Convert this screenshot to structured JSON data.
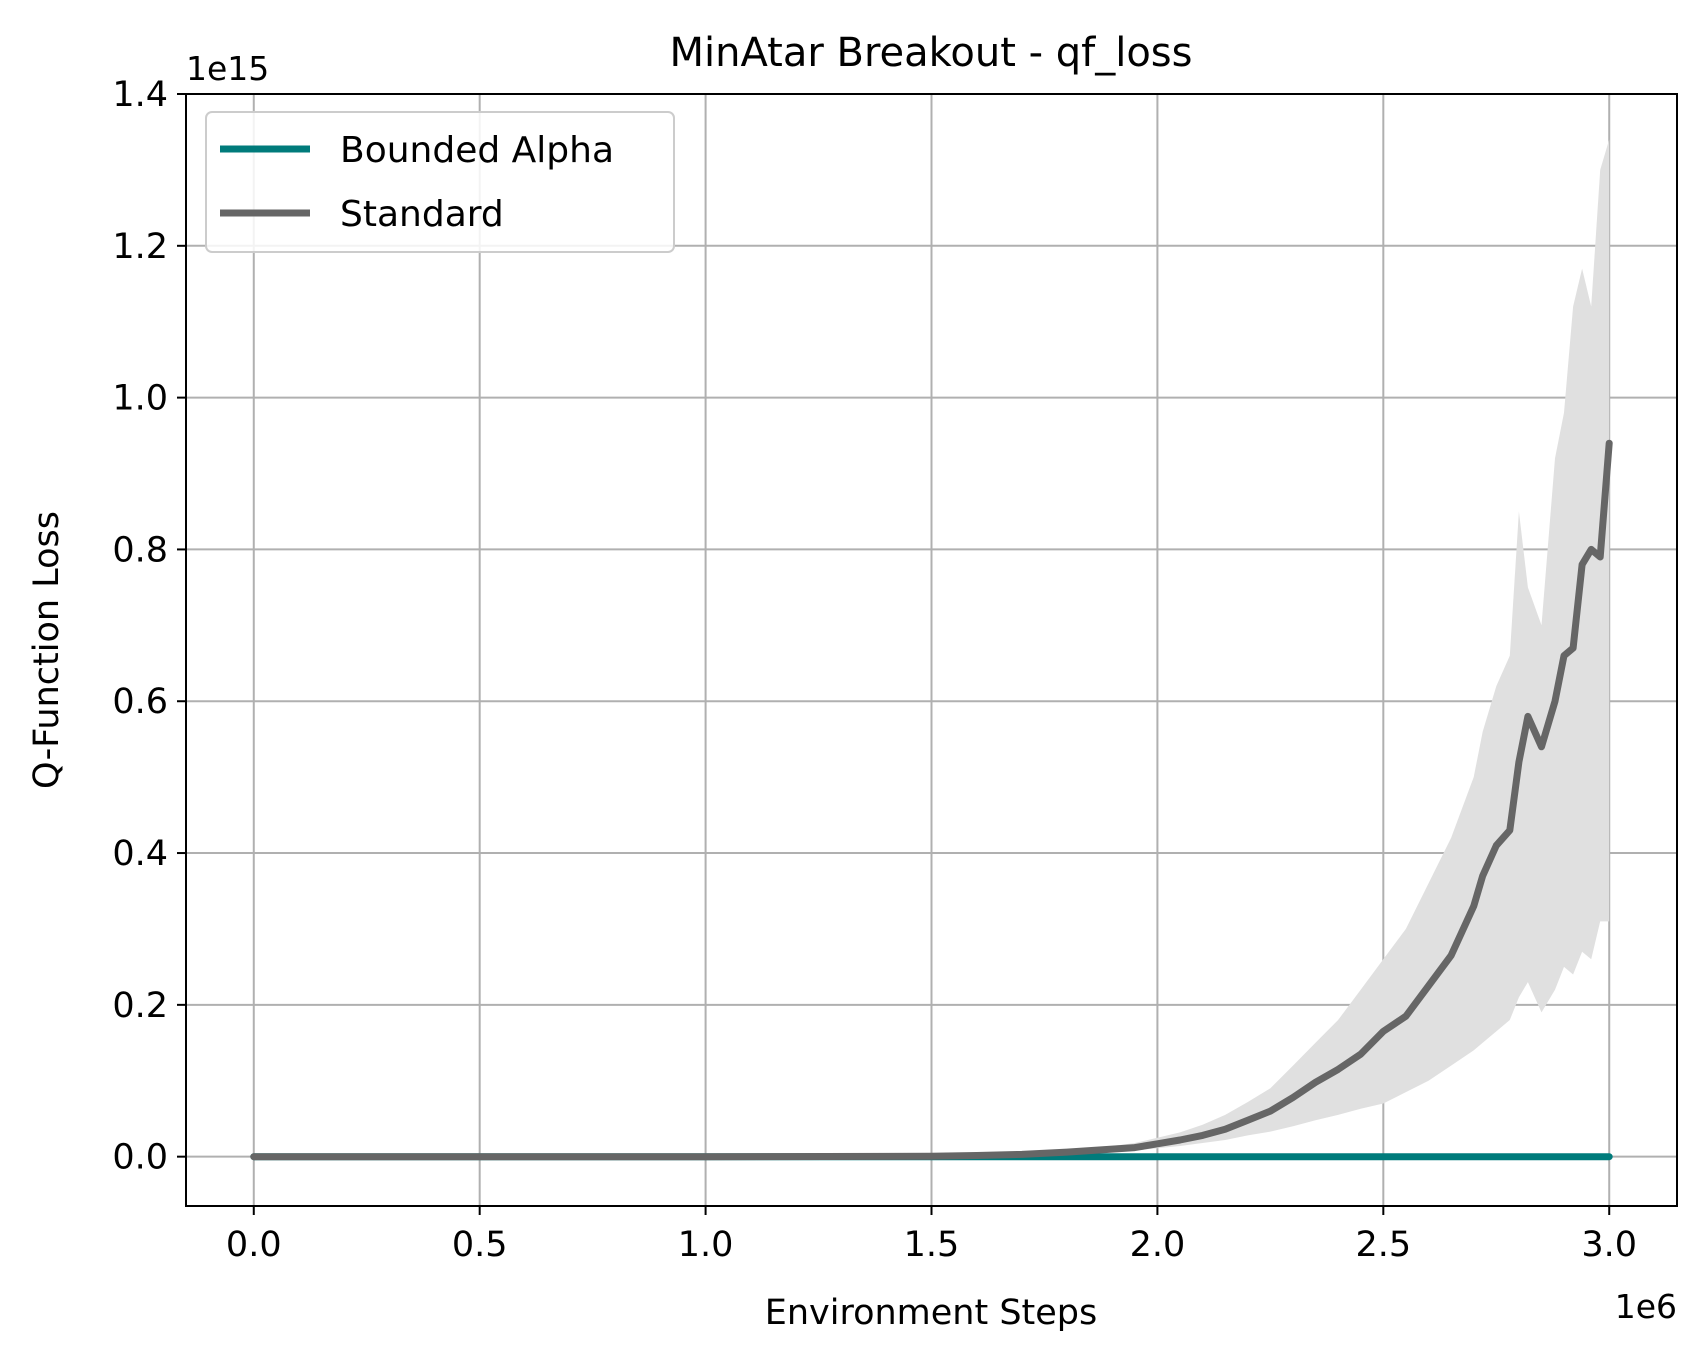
{
  "chart_data": {
    "type": "line",
    "title": "MinAtar Breakout - qf_loss",
    "xlabel": "Environment Steps",
    "ylabel": "Q-Function Loss",
    "x_scale_label": "1e6",
    "y_scale_label": "1e15",
    "xlim": [
      -0.15,
      3.15
    ],
    "ylim": [
      -0.065,
      1.4
    ],
    "x_ticks": [
      0.0,
      0.5,
      1.0,
      1.5,
      2.0,
      2.5,
      3.0
    ],
    "x_tick_labels": [
      "0.0",
      "0.5",
      "1.0",
      "1.5",
      "2.0",
      "2.5",
      "3.0"
    ],
    "y_ticks": [
      0.0,
      0.2,
      0.4,
      0.6,
      0.8,
      1.0,
      1.2,
      1.4
    ],
    "y_tick_labels": [
      "0.0",
      "0.2",
      "0.4",
      "0.6",
      "0.8",
      "1.0",
      "1.2",
      "1.4"
    ],
    "grid": true,
    "legend_position": "top-left",
    "series": [
      {
        "name": "Bounded Alpha",
        "color": "#007b7b",
        "x": [
          0.0,
          0.5,
          1.0,
          1.5,
          2.0,
          2.5,
          3.0
        ],
        "values": [
          0.0,
          0.0,
          0.0,
          0.0,
          0.0,
          0.0,
          0.0
        ]
      },
      {
        "name": "Standard",
        "color": "#666666",
        "band_color": "#e0e0e0",
        "x": [
          0.0,
          0.5,
          1.0,
          1.5,
          1.6,
          1.7,
          1.8,
          1.9,
          1.95,
          2.0,
          2.05,
          2.1,
          2.15,
          2.2,
          2.25,
          2.3,
          2.35,
          2.4,
          2.45,
          2.5,
          2.55,
          2.6,
          2.65,
          2.7,
          2.72,
          2.75,
          2.78,
          2.8,
          2.82,
          2.85,
          2.88,
          2.9,
          2.92,
          2.94,
          2.96,
          2.98,
          3.0
        ],
        "values": [
          0.0,
          0.0,
          0.0,
          0.0005,
          0.0015,
          0.003,
          0.006,
          0.01,
          0.012,
          0.017,
          0.022,
          0.028,
          0.036,
          0.048,
          0.06,
          0.078,
          0.098,
          0.115,
          0.135,
          0.165,
          0.185,
          0.225,
          0.265,
          0.33,
          0.37,
          0.41,
          0.43,
          0.52,
          0.58,
          0.54,
          0.6,
          0.66,
          0.67,
          0.78,
          0.8,
          0.79,
          0.94
        ],
        "lower": [
          0.0,
          0.0,
          0.0,
          0.0,
          0.001,
          0.002,
          0.004,
          0.006,
          0.008,
          0.011,
          0.014,
          0.018,
          0.022,
          0.028,
          0.033,
          0.04,
          0.048,
          0.055,
          0.063,
          0.07,
          0.085,
          0.1,
          0.12,
          0.14,
          0.15,
          0.165,
          0.18,
          0.21,
          0.23,
          0.19,
          0.22,
          0.25,
          0.24,
          0.27,
          0.26,
          0.31,
          0.31
        ],
        "upper": [
          0.0,
          0.0,
          0.0,
          0.001,
          0.002,
          0.004,
          0.008,
          0.014,
          0.018,
          0.025,
          0.032,
          0.042,
          0.055,
          0.072,
          0.09,
          0.12,
          0.15,
          0.18,
          0.22,
          0.26,
          0.3,
          0.36,
          0.42,
          0.5,
          0.56,
          0.62,
          0.66,
          0.85,
          0.75,
          0.7,
          0.92,
          0.98,
          1.12,
          1.17,
          1.12,
          1.3,
          1.34
        ]
      }
    ]
  }
}
